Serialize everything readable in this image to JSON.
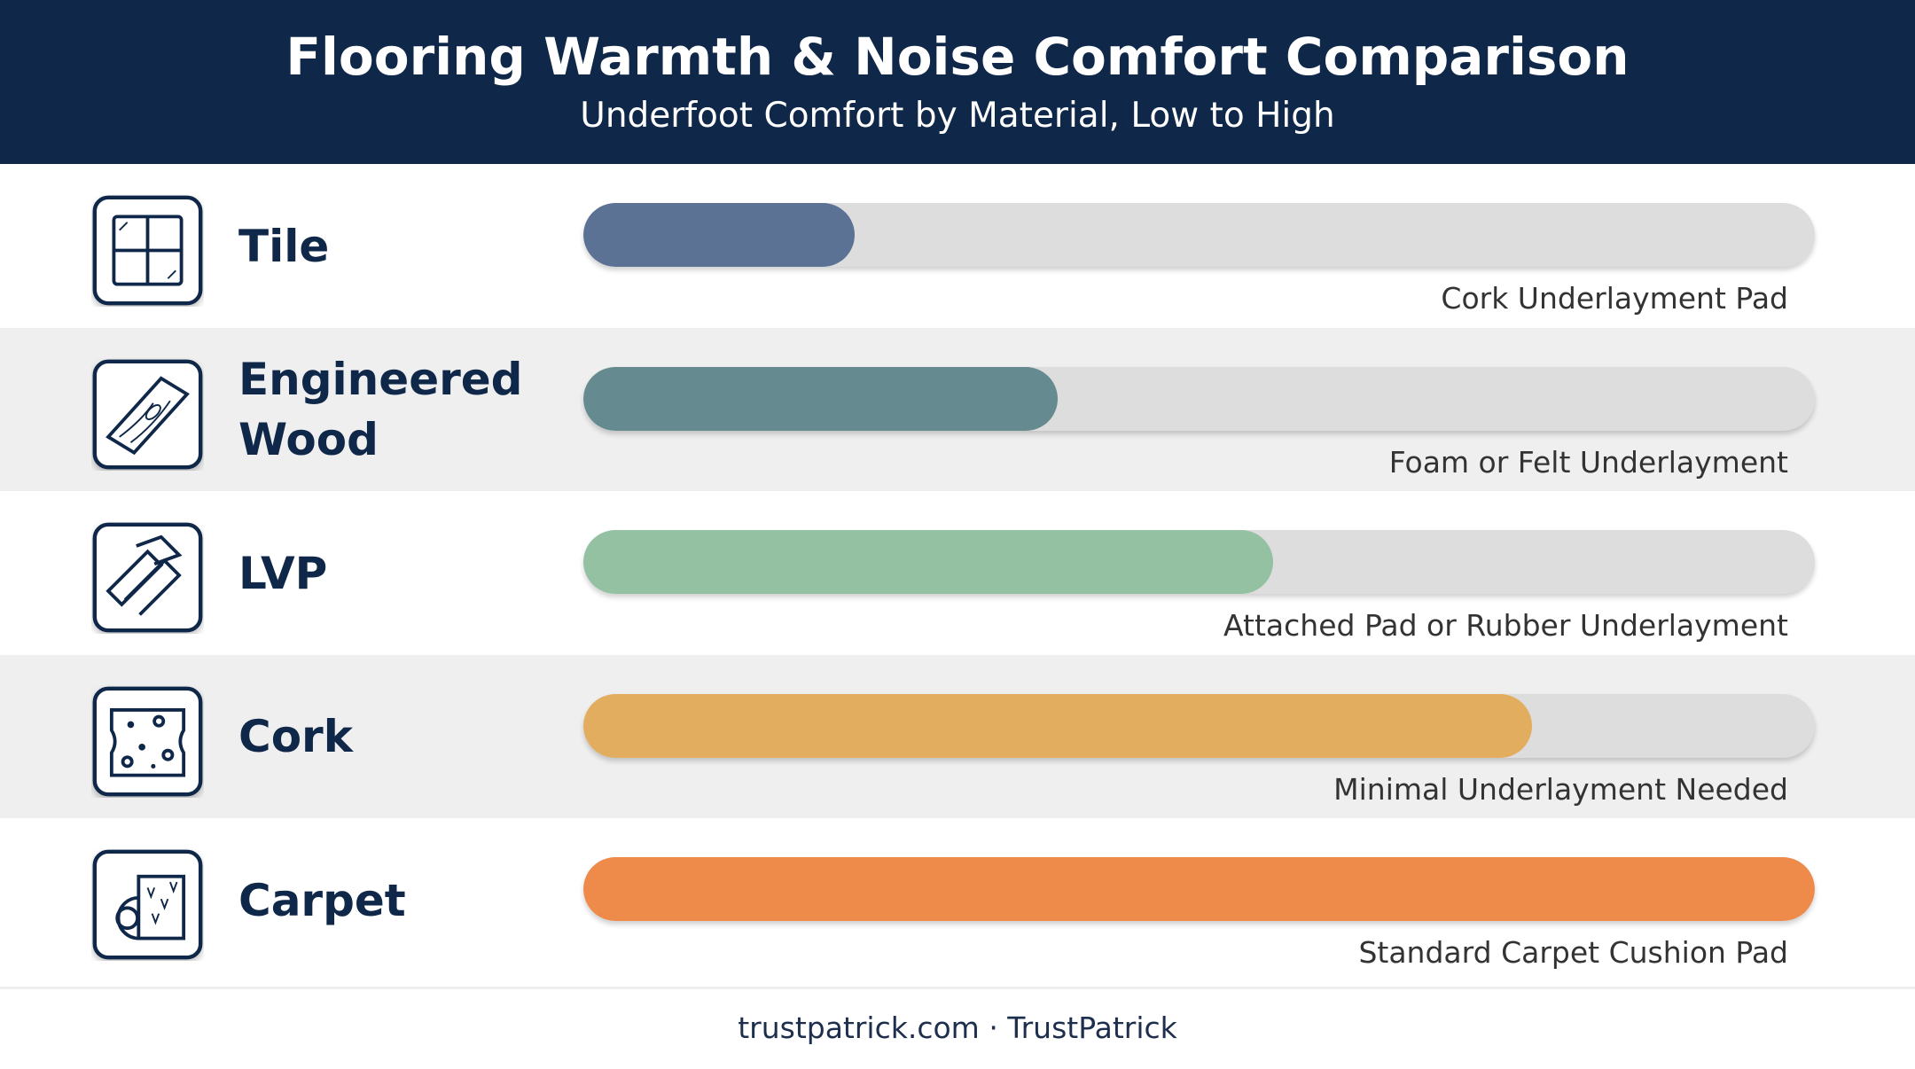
{
  "chart_data": {
    "type": "bar",
    "orientation": "horizontal",
    "title": "Flooring Warmth & Noise Comfort Comparison",
    "subtitle": "Underfoot Comfort by Material, Low to High",
    "categories": [
      "Tile",
      "Engineered Wood",
      "LVP",
      "Cork",
      "Carpet"
    ],
    "values": [
      22,
      38.5,
      56,
      77,
      100
    ],
    "colors": [
      "#5b7295",
      "#658b90",
      "#93c1a2",
      "#e2ad5f",
      "#ee8a4a"
    ],
    "annotations": [
      "Cork Underlayment Pad",
      "Foam or Felt Underlayment",
      "Attached Pad or Rubber Underlayment",
      "Minimal Underlayment Needed",
      "Standard Carpet Cushion Pad"
    ],
    "xlim": [
      0,
      100
    ],
    "source": "trustpatrick.com · TrustPatrick"
  }
}
